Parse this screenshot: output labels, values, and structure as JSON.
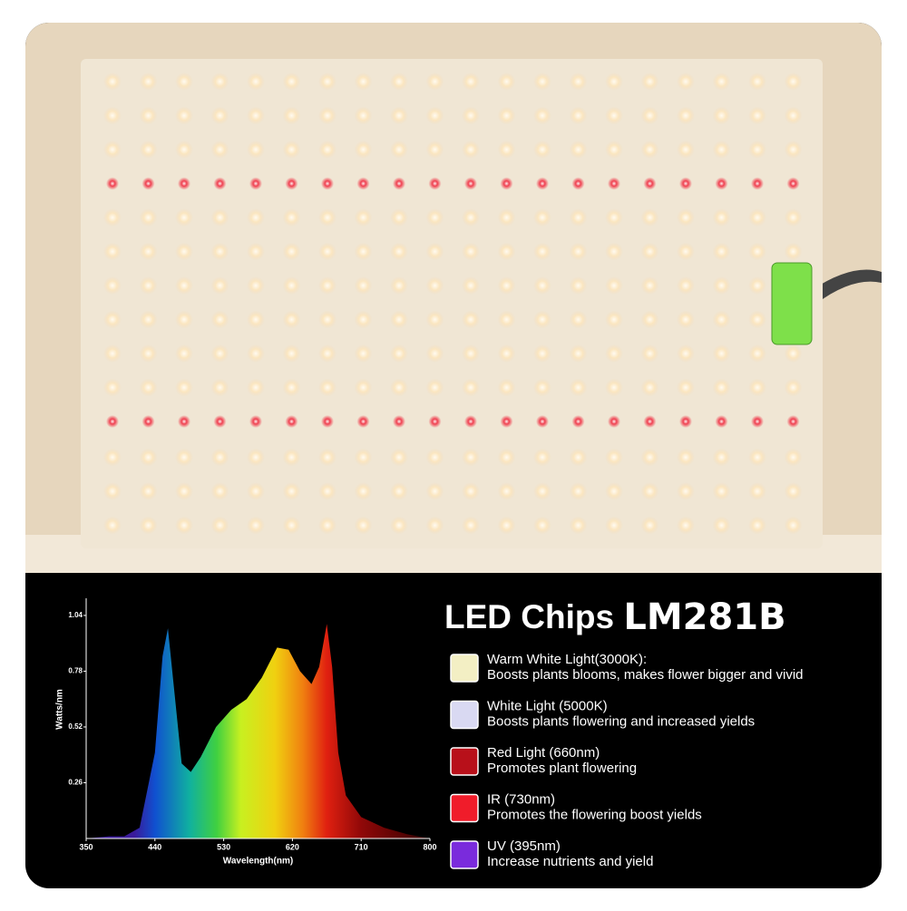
{
  "heading": {
    "prefix": "LED Chips",
    "model": "LM281B"
  },
  "chart_data": {
    "type": "area",
    "xlabel": "Wavelength(nm)",
    "ylabel": "Watts/nm",
    "x": [
      350,
      380,
      400,
      420,
      440,
      450,
      457,
      465,
      475,
      487,
      500,
      520,
      540,
      560,
      580,
      600,
      615,
      630,
      645,
      655,
      665,
      672,
      680,
      690,
      710,
      740,
      770,
      800
    ],
    "values": [
      0,
      0.01,
      0.01,
      0.05,
      0.4,
      0.85,
      0.98,
      0.7,
      0.35,
      0.31,
      0.38,
      0.52,
      0.6,
      0.65,
      0.75,
      0.89,
      0.88,
      0.78,
      0.72,
      0.8,
      1.0,
      0.8,
      0.4,
      0.2,
      0.1,
      0.05,
      0.02,
      0
    ],
    "xlim": [
      350,
      800
    ],
    "xticks": [
      350,
      440,
      530,
      620,
      710,
      800
    ],
    "ylim": [
      0,
      1.12
    ],
    "yticks": [
      0.26,
      0.52,
      0.78,
      1.04
    ]
  },
  "features": [
    {
      "title": "Warm White Light(3000K):",
      "description": "Boosts plants blooms, makes flower bigger and vivid",
      "color": "#f3efc4"
    },
    {
      "title": "White Light (5000K)",
      "description": "Boosts plants flowering and increased yields",
      "color": "#d9d9f2"
    },
    {
      "title": "Red Light (660nm)",
      "description": "Promotes plant flowering",
      "color": "#b8101a"
    },
    {
      "title": "IR (730nm)",
      "description": "Promotes the flowering boost yields",
      "color": "#f01c2a"
    },
    {
      "title": "UV (395nm)",
      "description": "Increase nutrients and yield",
      "color": "#7a2bdc"
    }
  ]
}
